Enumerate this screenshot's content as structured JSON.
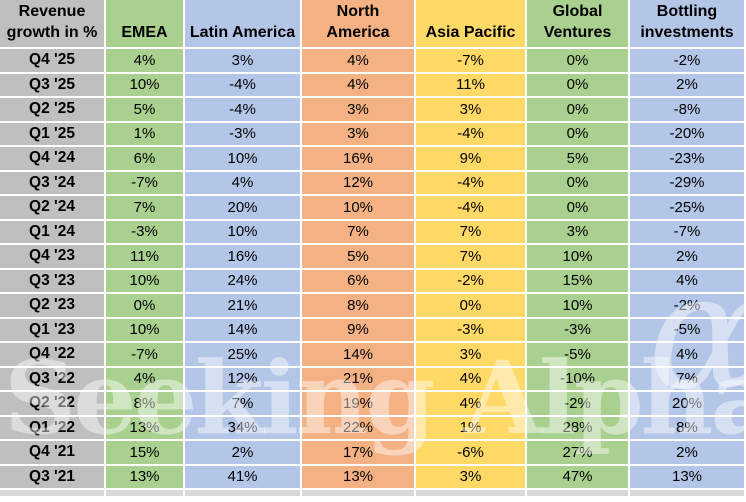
{
  "title": "Revenue growth in %",
  "colors": {
    "header_gray": "#BFBFBF",
    "bottom_sliver_gray": "#D9D9D9",
    "green": "#A9D08E",
    "blue": "#B4C6E7",
    "orange": "#F4B183",
    "yellow": "#FFD966",
    "cell_border_white": "#FFFFFF",
    "text_black": "#000000",
    "watermark_white": "rgba(255,255,255,0.45)"
  },
  "table": {
    "corner_header_line1": "Revenue",
    "corner_header_line2": "growth in %",
    "columns": [
      {
        "id": "emea",
        "label_lines": [
          "EMEA"
        ],
        "color": "#A9D08E"
      },
      {
        "id": "latin-america",
        "label_lines": [
          "Latin America"
        ],
        "color": "#B4C6E7"
      },
      {
        "id": "north-america",
        "label_lines": [
          "North",
          "America"
        ],
        "color": "#F4B183"
      },
      {
        "id": "asia-pacific",
        "label_lines": [
          "Asia Pacific"
        ],
        "color": "#FFD966"
      },
      {
        "id": "global-ventures",
        "label_lines": [
          "Global",
          "Ventures"
        ],
        "color": "#A9D08E"
      },
      {
        "id": "bottling-investments",
        "label_lines": [
          "Bottling",
          "investments"
        ],
        "color": "#B4C6E7"
      }
    ],
    "rows": [
      {
        "label": "Q4 '25",
        "values": [
          "4%",
          "3%",
          "4%",
          "-7%",
          "0%",
          "-2%"
        ]
      },
      {
        "label": "Q3 '25",
        "values": [
          "10%",
          "-4%",
          "4%",
          "11%",
          "0%",
          "2%"
        ]
      },
      {
        "label": "Q2 '25",
        "values": [
          "5%",
          "-4%",
          "3%",
          "3%",
          "0%",
          "-8%"
        ]
      },
      {
        "label": "Q1 '25",
        "values": [
          "1%",
          "-3%",
          "3%",
          "-4%",
          "0%",
          "-20%"
        ]
      },
      {
        "label": "Q4 '24",
        "values": [
          "6%",
          "10%",
          "16%",
          "9%",
          "5%",
          "-23%"
        ]
      },
      {
        "label": "Q3 '24",
        "values": [
          "-7%",
          "4%",
          "12%",
          "-4%",
          "0%",
          "-29%"
        ]
      },
      {
        "label": "Q2 '24",
        "values": [
          "7%",
          "20%",
          "10%",
          "-4%",
          "0%",
          "-25%"
        ]
      },
      {
        "label": "Q1 '24",
        "values": [
          "-3%",
          "10%",
          "7%",
          "7%",
          "3%",
          "-7%"
        ]
      },
      {
        "label": "Q4 '23",
        "values": [
          "11%",
          "16%",
          "5%",
          "7%",
          "10%",
          "2%"
        ]
      },
      {
        "label": "Q3 '23",
        "values": [
          "10%",
          "24%",
          "6%",
          "-2%",
          "15%",
          "4%"
        ]
      },
      {
        "label": "Q2 '23",
        "values": [
          "0%",
          "21%",
          "8%",
          "0%",
          "10%",
          "-2%"
        ]
      },
      {
        "label": "Q1 '23",
        "values": [
          "10%",
          "14%",
          "9%",
          "-3%",
          "-3%",
          "-5%"
        ]
      },
      {
        "label": "Q4 '22",
        "values": [
          "-7%",
          "25%",
          "14%",
          "3%",
          "-5%",
          "4%"
        ]
      },
      {
        "label": "Q3 '22",
        "values": [
          "4%",
          "12%",
          "21%",
          "4%",
          "-10%",
          "7%"
        ]
      },
      {
        "label": "Q2 '22",
        "values": [
          "8%",
          "7%",
          "19%",
          "4%",
          "-2%",
          "20%"
        ]
      },
      {
        "label": "Q1 '22",
        "values": [
          "13%",
          "34%",
          "22%",
          "1%",
          "28%",
          "8%"
        ]
      },
      {
        "label": "Q4 '21",
        "values": [
          "15%",
          "2%",
          "17%",
          "-6%",
          "27%",
          "2%"
        ]
      },
      {
        "label": "Q3 '21",
        "values": [
          "13%",
          "41%",
          "13%",
          "3%",
          "47%",
          "13%"
        ]
      }
    ]
  },
  "watermark": {
    "text": "Seeking Alpha",
    "alpha_symbol": "α"
  },
  "chart_data": {
    "type": "table",
    "title": "Revenue growth in %",
    "unit": "%",
    "categories": [
      "Q4 '25",
      "Q3 '25",
      "Q2 '25",
      "Q1 '25",
      "Q4 '24",
      "Q3 '24",
      "Q2 '24",
      "Q1 '24",
      "Q4 '23",
      "Q3 '23",
      "Q2 '23",
      "Q1 '23",
      "Q4 '22",
      "Q3 '22",
      "Q2 '22",
      "Q1 '22",
      "Q4 '21",
      "Q3 '21"
    ],
    "series": [
      {
        "name": "EMEA",
        "values": [
          4,
          10,
          5,
          1,
          6,
          -7,
          7,
          -3,
          11,
          10,
          0,
          10,
          -7,
          4,
          8,
          13,
          15,
          13
        ]
      },
      {
        "name": "Latin America",
        "values": [
          3,
          -4,
          -4,
          -3,
          10,
          4,
          20,
          10,
          16,
          24,
          21,
          14,
          25,
          12,
          7,
          34,
          2,
          41
        ]
      },
      {
        "name": "North America",
        "values": [
          4,
          4,
          3,
          3,
          16,
          12,
          10,
          7,
          5,
          6,
          8,
          9,
          14,
          21,
          19,
          22,
          17,
          13
        ]
      },
      {
        "name": "Asia Pacific",
        "values": [
          -7,
          11,
          3,
          -4,
          9,
          -4,
          -4,
          7,
          7,
          -2,
          0,
          -3,
          3,
          4,
          4,
          1,
          -6,
          3
        ]
      },
      {
        "name": "Global Ventures",
        "values": [
          0,
          0,
          0,
          0,
          5,
          0,
          0,
          3,
          10,
          15,
          10,
          -3,
          -5,
          -10,
          -2,
          28,
          27,
          47
        ]
      },
      {
        "name": "Bottling investments",
        "values": [
          -2,
          2,
          -8,
          -20,
          -23,
          -29,
          -25,
          -7,
          2,
          4,
          -2,
          -5,
          4,
          7,
          20,
          8,
          2,
          13
        ]
      }
    ]
  }
}
